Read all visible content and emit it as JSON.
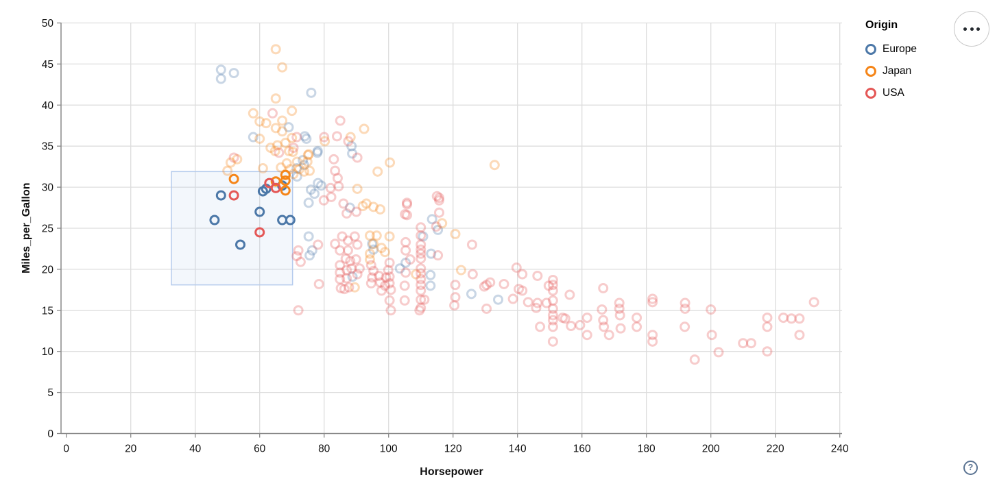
{
  "legend": {
    "title": "Origin",
    "entries": [
      {
        "label": "Europe",
        "color": "#4c78a8"
      },
      {
        "label": "Japan",
        "color": "#f58518"
      },
      {
        "label": "USA",
        "color": "#e45756"
      }
    ]
  },
  "menu_button": {
    "icon": "ellipsis-menu"
  },
  "help_button": {
    "label": "?"
  },
  "chart_data": {
    "type": "scatter",
    "title": "",
    "xlabel": "Horsepower",
    "ylabel": "Miles_per_Gallon",
    "xlim": [
      0,
      240
    ],
    "ylim": [
      0,
      50
    ],
    "xticks": [
      0,
      20,
      40,
      60,
      80,
      100,
      120,
      140,
      160,
      180,
      200,
      220,
      240
    ],
    "yticks": [
      0,
      5,
      10,
      15,
      20,
      25,
      30,
      35,
      40,
      45,
      50
    ],
    "grid": true,
    "grid_color": "#dddddd",
    "axis_color": "#888888",
    "label_color": "#111111",
    "legend_position": "top-right",
    "color_field": "Origin",
    "colors": {
      "Europe": "#4c78a8",
      "Japan": "#f58518",
      "USA": "#e45756"
    },
    "unselected_opacity": 0.3,
    "brush": {
      "x0": 32.6,
      "x1": 70.2,
      "y0": 18.1,
      "y1": 31.9,
      "fill": "#aec8ec",
      "fill_opacity": 0.15,
      "stroke": "#b5cbed"
    },
    "series": [
      {
        "name": "Europe",
        "points": [
          [
            46,
            26
          ],
          [
            48,
            29
          ],
          [
            54,
            23
          ],
          [
            60,
            27
          ],
          [
            61,
            29.5
          ],
          [
            62,
            29.8
          ],
          [
            67,
            30.2
          ],
          [
            67,
            26
          ],
          [
            69.5,
            26
          ],
          [
            48,
            44.3
          ],
          [
            52,
            43.9
          ],
          [
            48,
            43.2
          ],
          [
            76,
            41.5
          ],
          [
            69,
            37.3
          ],
          [
            58,
            36.1
          ],
          [
            74,
            36.2
          ],
          [
            78,
            34.4
          ],
          [
            73.4,
            33.3
          ],
          [
            73.8,
            32.7
          ],
          [
            71.6,
            31.3
          ],
          [
            74.5,
            35.9
          ],
          [
            88.5,
            35
          ],
          [
            77.9,
            34.2
          ],
          [
            88.7,
            34.1
          ],
          [
            71.5,
            32.3
          ],
          [
            78.1,
            30.5
          ],
          [
            79.1,
            30.2
          ],
          [
            75.9,
            29.7
          ],
          [
            77,
            29.2
          ],
          [
            75.2,
            28.1
          ],
          [
            88,
            27.5
          ],
          [
            75.2,
            24
          ],
          [
            76.3,
            22.3
          ],
          [
            75.5,
            21.7
          ],
          [
            94.9,
            23.1
          ],
          [
            95.3,
            22.4
          ],
          [
            88.8,
            19.1
          ],
          [
            105.3,
            20.8
          ],
          [
            103.5,
            20.1
          ],
          [
            110.7,
            24
          ],
          [
            113.2,
            21.9
          ],
          [
            113,
            19.3
          ],
          [
            113,
            18
          ],
          [
            113.5,
            26.1
          ],
          [
            115.3,
            24.8
          ],
          [
            125.7,
            17
          ],
          [
            134,
            16.3
          ]
        ]
      },
      {
        "name": "Japan",
        "points": [
          [
            52,
            31
          ],
          [
            65,
            30.7
          ],
          [
            68,
            31.5
          ],
          [
            68,
            30.8
          ],
          [
            68,
            29.6
          ],
          [
            65,
            46.8
          ],
          [
            67,
            44.6
          ],
          [
            65,
            40.8
          ],
          [
            70,
            39.3
          ],
          [
            58,
            39
          ],
          [
            60,
            38
          ],
          [
            62,
            37.8
          ],
          [
            67,
            38.1
          ],
          [
            65,
            37.2
          ],
          [
            67,
            36.8
          ],
          [
            60,
            35.9
          ],
          [
            70,
            36
          ],
          [
            75,
            33.9
          ],
          [
            92.4,
            37.1
          ],
          [
            88.2,
            36.1
          ],
          [
            80.2,
            35.6
          ],
          [
            70.3,
            34.3
          ],
          [
            75.2,
            34
          ],
          [
            74.8,
            33.1
          ],
          [
            73.8,
            31.9
          ],
          [
            75.5,
            32
          ],
          [
            90.3,
            29.8
          ],
          [
            100.4,
            33
          ],
          [
            96.6,
            31.9
          ],
          [
            93.1,
            28
          ],
          [
            95.3,
            27.6
          ],
          [
            97.4,
            27.3
          ],
          [
            92,
            27.7
          ],
          [
            53,
            33.4
          ],
          [
            51,
            33
          ],
          [
            50,
            32
          ],
          [
            61,
            32.3
          ],
          [
            66.6,
            32.4
          ],
          [
            68.4,
            32.9
          ],
          [
            69.5,
            32.2
          ],
          [
            71.6,
            33.1
          ],
          [
            72.3,
            32.2
          ],
          [
            70.5,
            31.6
          ],
          [
            63.4,
            34.8
          ],
          [
            64.8,
            34.4
          ],
          [
            65.5,
            35.1
          ],
          [
            68,
            35.4
          ],
          [
            69.1,
            34.4
          ],
          [
            94.2,
            24.1
          ],
          [
            96.3,
            24.1
          ],
          [
            95.3,
            23.1
          ],
          [
            97.8,
            22.6
          ],
          [
            100.3,
            24
          ],
          [
            98.9,
            22.1
          ],
          [
            94.2,
            21.9
          ],
          [
            94.2,
            21.2
          ],
          [
            89.5,
            17.8
          ],
          [
            108.5,
            19.4
          ],
          [
            116.6,
            25.6
          ],
          [
            120.7,
            24.3
          ],
          [
            122.5,
            19.9
          ],
          [
            132.9,
            32.7
          ]
        ]
      },
      {
        "name": "USA",
        "points": [
          [
            52,
            29
          ],
          [
            60,
            24.5
          ],
          [
            63,
            30.5
          ],
          [
            65,
            29.9
          ],
          [
            64,
            39
          ],
          [
            66,
            34.2
          ],
          [
            52,
            33.6
          ],
          [
            70.5,
            34.8
          ],
          [
            85,
            38.1
          ],
          [
            84,
            36.2
          ],
          [
            87.5,
            35.6
          ],
          [
            80,
            36.1
          ],
          [
            71.5,
            36.1
          ],
          [
            90.3,
            33.6
          ],
          [
            83,
            33.4
          ],
          [
            83.4,
            32
          ],
          [
            84.2,
            31.1
          ],
          [
            82,
            29.9
          ],
          [
            84.5,
            30.1
          ],
          [
            79.9,
            28.4
          ],
          [
            82.2,
            28.8
          ],
          [
            86,
            28
          ],
          [
            90,
            27
          ],
          [
            87,
            26.8
          ],
          [
            105.7,
            28.1
          ],
          [
            105.1,
            26.7
          ],
          [
            115,
            28.9
          ],
          [
            115.7,
            28.4
          ],
          [
            78.1,
            23
          ],
          [
            72,
            22.3
          ],
          [
            71.5,
            21.6
          ],
          [
            72.7,
            20.9
          ],
          [
            83.4,
            23.1
          ],
          [
            85.6,
            24
          ],
          [
            84.9,
            22.3
          ],
          [
            78.4,
            18.2
          ],
          [
            85.2,
            17.7
          ],
          [
            72,
            15
          ],
          [
            87.4,
            23.5
          ],
          [
            89.5,
            24
          ],
          [
            90.3,
            23
          ],
          [
            87.4,
            22.3
          ],
          [
            86.7,
            21.3
          ],
          [
            88.1,
            21
          ],
          [
            89.9,
            21.2
          ],
          [
            91,
            20.1
          ],
          [
            88.5,
            20.1
          ],
          [
            87,
            19.9
          ],
          [
            84.9,
            20.5
          ],
          [
            84.9,
            19.6
          ],
          [
            84.9,
            18.8
          ],
          [
            87,
            18.9
          ],
          [
            90.3,
            19.4
          ],
          [
            87.7,
            17.8
          ],
          [
            86.3,
            17.6
          ],
          [
            94.6,
            20.5
          ],
          [
            95.3,
            19.8
          ],
          [
            94.9,
            19
          ],
          [
            94.6,
            18.3
          ],
          [
            97,
            19.2
          ],
          [
            97.4,
            18.4
          ],
          [
            98.9,
            18
          ],
          [
            97.8,
            17.4
          ],
          [
            99.2,
            19
          ],
          [
            100.3,
            20.8
          ],
          [
            99.9,
            19.9
          ],
          [
            100.3,
            19.1
          ],
          [
            100.3,
            18.3
          ],
          [
            100.7,
            17.5
          ],
          [
            100.3,
            16.2
          ],
          [
            100.7,
            15
          ],
          [
            105.3,
            23.3
          ],
          [
            105.3,
            22.3
          ],
          [
            106.7,
            21.2
          ],
          [
            105.3,
            19.6
          ],
          [
            105.7,
            27.9
          ],
          [
            105.7,
            26.6
          ],
          [
            105,
            18
          ],
          [
            105,
            16.2
          ],
          [
            110,
            25.1
          ],
          [
            110,
            24.1
          ],
          [
            110,
            23
          ],
          [
            110,
            22.4
          ],
          [
            110,
            21.9
          ],
          [
            110,
            21.3
          ],
          [
            110,
            20.1
          ],
          [
            110,
            19.5
          ],
          [
            110,
            18.8
          ],
          [
            110,
            18.1
          ],
          [
            110,
            17.4
          ],
          [
            110,
            16.3
          ],
          [
            110,
            15.3
          ],
          [
            111.1,
            16.3
          ],
          [
            109.6,
            15
          ],
          [
            115.3,
            21.7
          ],
          [
            115.7,
            28.7
          ],
          [
            115.7,
            26.9
          ],
          [
            114.8,
            25.2
          ],
          [
            120.7,
            18.1
          ],
          [
            120.7,
            16.6
          ],
          [
            120.4,
            15.6
          ],
          [
            126.1,
            19.4
          ],
          [
            125.9,
            23
          ],
          [
            130.4,
            18.1
          ],
          [
            131.5,
            18.4
          ],
          [
            129.7,
            17.9
          ],
          [
            130.4,
            15.2
          ],
          [
            135.8,
            18.2
          ],
          [
            139.7,
            20.2
          ],
          [
            141.5,
            19.4
          ],
          [
            146.2,
            19.2
          ],
          [
            141.5,
            17.4
          ],
          [
            138.6,
            16.4
          ],
          [
            140.4,
            17.6
          ],
          [
            143.3,
            16
          ],
          [
            146.2,
            15.9
          ],
          [
            149,
            15.9
          ],
          [
            149.7,
            18
          ],
          [
            145.8,
            15.3
          ],
          [
            147,
            13
          ],
          [
            151,
            18.7
          ],
          [
            151,
            18.1
          ],
          [
            151,
            17.4
          ],
          [
            151,
            16.2
          ],
          [
            151,
            15.2
          ],
          [
            151,
            14.4
          ],
          [
            151,
            13.8
          ],
          [
            151,
            13
          ],
          [
            151,
            11.2
          ],
          [
            156.2,
            16.9
          ],
          [
            154,
            14.1
          ],
          [
            154.8,
            14
          ],
          [
            156.6,
            13.1
          ],
          [
            159.4,
            13.2
          ],
          [
            161.6,
            14.1
          ],
          [
            161.6,
            12
          ],
          [
            166.6,
            17.7
          ],
          [
            166.2,
            15.1
          ],
          [
            166.6,
            13.8
          ],
          [
            166.8,
            13
          ],
          [
            168.4,
            12
          ],
          [
            171.6,
            15.9
          ],
          [
            171.6,
            15.2
          ],
          [
            171.8,
            14.4
          ],
          [
            172,
            12.8
          ],
          [
            177,
            14.1
          ],
          [
            177,
            13
          ],
          [
            181.9,
            16.4
          ],
          [
            181.9,
            16
          ],
          [
            181.9,
            12
          ],
          [
            181.9,
            11.2
          ],
          [
            192,
            15.9
          ],
          [
            192,
            15.2
          ],
          [
            191.9,
            13
          ],
          [
            195,
            9
          ],
          [
            200,
            15.1
          ],
          [
            200.3,
            12
          ],
          [
            202.4,
            9.9
          ],
          [
            210,
            11
          ],
          [
            212.5,
            11
          ],
          [
            217.5,
            14.1
          ],
          [
            217.5,
            13
          ],
          [
            217.5,
            10
          ],
          [
            222.5,
            14.1
          ],
          [
            225,
            14
          ],
          [
            227.5,
            14
          ],
          [
            227.5,
            12
          ],
          [
            232,
            16
          ]
        ]
      }
    ]
  }
}
